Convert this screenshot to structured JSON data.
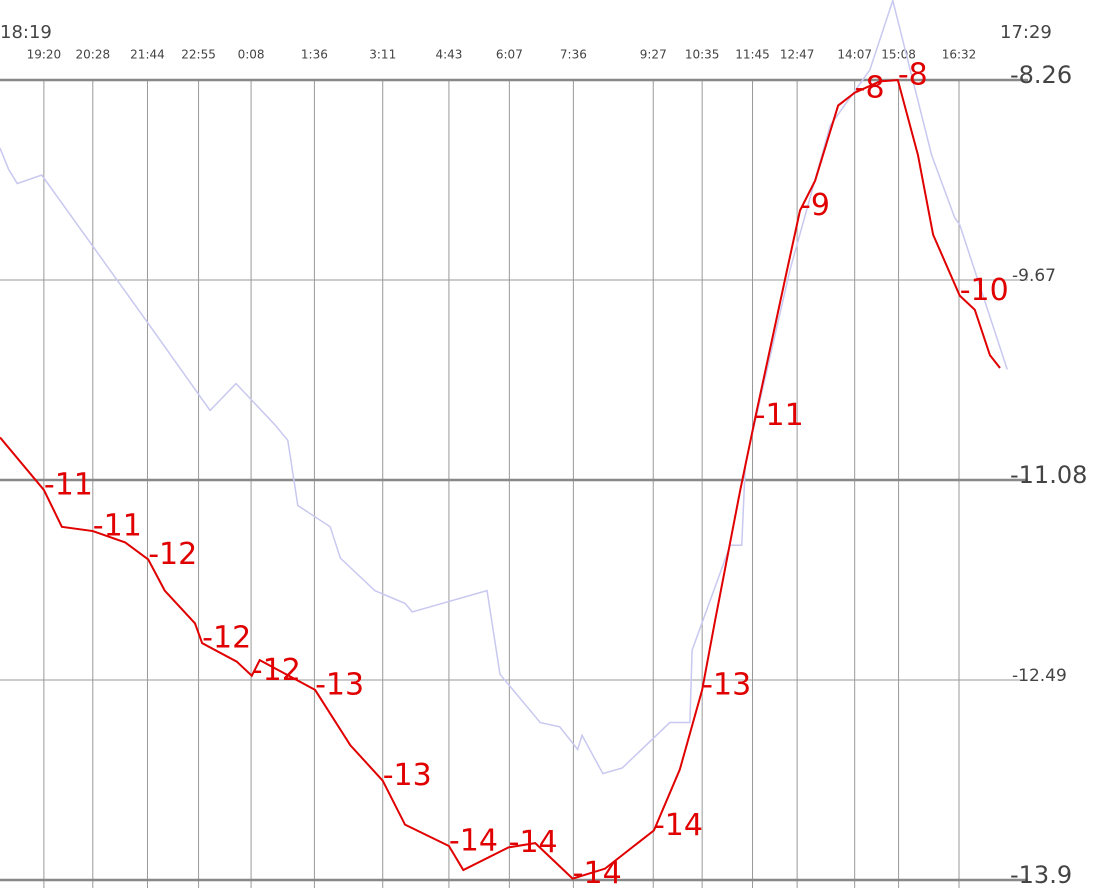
{
  "chart_data": {
    "type": "line",
    "xlim": [
      "18:19",
      "17:29"
    ],
    "xticks": [
      "19:20",
      "20:28",
      "21:44",
      "22:55",
      "0:08",
      "1:36",
      "3:11",
      "4:43",
      "6:07",
      "7:36",
      "9:27",
      "10:35",
      "11:45",
      "12:47",
      "14:07",
      "15:08",
      "16:32"
    ],
    "ylim": [
      -13.9,
      -8.26
    ],
    "yticks": [
      -8.26,
      -9.67,
      -11.08,
      -12.49,
      -13.9
    ],
    "grid": true,
    "series": [
      {
        "color": "#c8c8f0",
        "x": [
          "18:19",
          "18:31",
          "18:43",
          "19:17",
          "21:47",
          "23:11",
          "23:47",
          "0:41",
          "0:59",
          "1:13",
          "1:58",
          "2:12",
          "3:00",
          "3:42",
          "3:52",
          "5:36",
          "5:54",
          "6:50",
          "7:17",
          "7:42",
          "7:48",
          "8:17",
          "8:44",
          "9:50",
          "10:18",
          "10:21",
          "11:14",
          "11:30",
          "11:35",
          "12:37",
          "13:33",
          "14:28",
          "15:00",
          "15:54",
          "16:26",
          "16:33",
          "17:39"
        ],
        "values": [
          -8.74,
          -8.89,
          -8.99,
          -8.93,
          -9.99,
          -10.59,
          -10.4,
          -10.69,
          -10.8,
          -11.26,
          -11.41,
          -11.63,
          -11.86,
          -11.95,
          -12.01,
          -11.86,
          -12.45,
          -12.79,
          -12.82,
          -12.98,
          -12.88,
          -13.15,
          -13.11,
          -12.79,
          -12.79,
          -12.28,
          -11.54,
          -11.54,
          -10.97,
          -9.6,
          -8.58,
          -8.19,
          -7.7,
          -8.79,
          -9.23,
          -9.28,
          -10.3
        ]
      },
      {
        "color": "#e00000",
        "x": [
          "18:19",
          "19:20",
          "19:45",
          "20:28",
          "21:13",
          "21:45",
          "22:08",
          "22:50",
          "23:00",
          "23:48",
          "0:09",
          "0:20",
          "1:37",
          "2:26",
          "3:11",
          "3:42",
          "4:43",
          "5:03",
          "6:06",
          "6:43",
          "7:35",
          "8:20",
          "9:28",
          "10:04",
          "10:35",
          "10:53",
          "11:28",
          "11:48",
          "12:30",
          "12:51",
          "13:12",
          "13:44",
          "14:07",
          "14:42",
          "15:07",
          "15:35",
          "15:56",
          "16:33",
          "16:54",
          "17:15",
          "17:29"
        ],
        "values": [
          -10.78,
          -11.15,
          -11.41,
          -11.44,
          -11.52,
          -11.64,
          -11.86,
          -12.09,
          -12.23,
          -12.36,
          -12.46,
          -12.35,
          -12.56,
          -12.95,
          -13.2,
          -13.51,
          -13.66,
          -13.83,
          -13.67,
          -13.64,
          -13.89,
          -13.82,
          -13.55,
          -13.12,
          -12.56,
          -12.07,
          -11.15,
          -10.66,
          -9.67,
          -9.18,
          -8.97,
          -8.44,
          -8.35,
          -8.27,
          -8.26,
          -8.79,
          -9.35,
          -9.78,
          -9.88,
          -10.2,
          -10.29
        ],
        "value_labels": [
          null,
          "-11",
          null,
          "-11",
          null,
          "-12",
          null,
          null,
          "-12",
          null,
          "-12",
          null,
          "-13",
          null,
          "-13",
          null,
          "-14",
          null,
          "-14",
          null,
          "-14",
          null,
          "-14",
          null,
          "-13",
          null,
          null,
          "-11",
          null,
          "-9",
          null,
          null,
          "-8",
          null,
          "-8",
          null,
          null,
          "-10",
          null,
          null,
          null
        ]
      }
    ]
  }
}
